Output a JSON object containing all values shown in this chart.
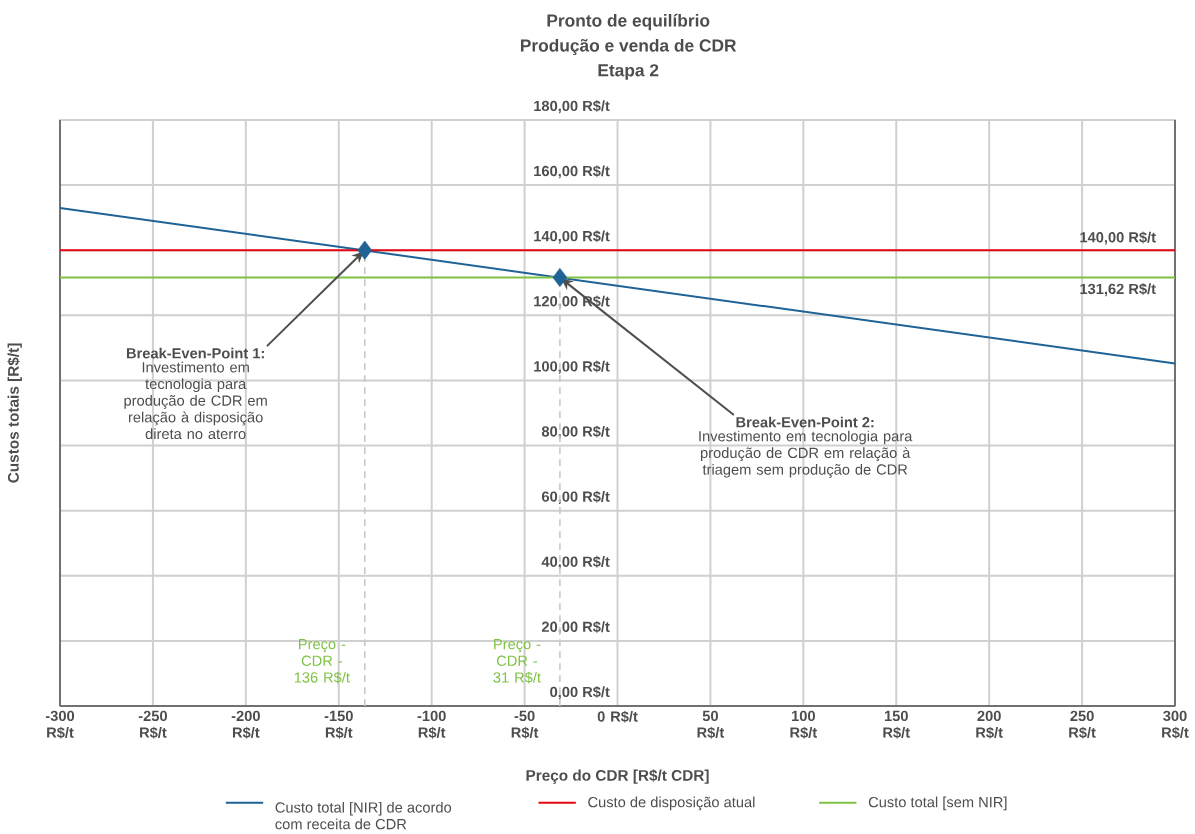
{
  "chart_data": {
    "type": "line",
    "title": "Pronto de equilíbrio",
    "subtitle": "Produção e venda de CDR",
    "xlabel": "Preço do CDR [R$/t CDR]",
    "ylabel": "Custos totais [R$/t]",
    "xlim": [
      -300,
      300
    ],
    "ylim": [
      0,
      180
    ],
    "xticks": [
      {
        "value": -300,
        "label": "-300 R$/t"
      },
      {
        "value": -250,
        "label": "-250 R$/t"
      },
      {
        "value": -200,
        "label": "-200 R$/t"
      },
      {
        "value": -150,
        "label": "-150 R$/t"
      },
      {
        "value": -100,
        "label": "-100 R$/t"
      },
      {
        "value": -50,
        "label": "-50 R$/t"
      },
      {
        "value": 0,
        "label": "0 R$/t"
      },
      {
        "value": 50,
        "label": "50 R$/t"
      },
      {
        "value": 100,
        "label": "100 R$/t"
      },
      {
        "value": 150,
        "label": "150 R$/t"
      },
      {
        "value": 200,
        "label": "200 R$/t"
      },
      {
        "value": 250,
        "label": "250 R$/t"
      },
      {
        "value": 300,
        "label": "300 R$/t"
      }
    ],
    "yticks": [
      {
        "value": 0,
        "label": "0,00 R$/t"
      },
      {
        "value": 20,
        "label": "20,00 R$/t"
      },
      {
        "value": 40,
        "label": "40,00 R$/t"
      },
      {
        "value": 60,
        "label": "60,00 R$/t"
      },
      {
        "value": 80,
        "label": "80,00 R$/t"
      },
      {
        "value": 100,
        "label": "100,00 R$/t"
      },
      {
        "value": 120,
        "label": "120,00 R$/t"
      },
      {
        "value": 140,
        "label": "140,00 R$/t"
      },
      {
        "value": 160,
        "label": "160,00 R$/t"
      },
      {
        "value": 180,
        "label": "180,00 R$/t"
      }
    ],
    "grid": true,
    "legend": "bottom",
    "series": [
      {
        "name": "Custo total [NIR] de acordo com receita de CDR",
        "color": "#1f6396",
        "x": [
          -300,
          300
        ],
        "values": [
          153,
          105.2
        ]
      },
      {
        "name": "Custo de disposição atual",
        "color": "#e30613",
        "x": [
          -300,
          300
        ],
        "values": [
          140,
          140
        ]
      },
      {
        "name": "Custo total [sem NIR]",
        "color": "#7dc242",
        "x": [
          -300,
          300
        ],
        "values": [
          131.62,
          131.62
        ]
      },
      {
        "type": "scatter",
        "marker": "diamond",
        "color": "#1f6396",
        "x": [
          -136,
          -31
        ],
        "values": [
          140,
          131.62
        ]
      }
    ],
    "ref_lines": [
      {
        "axis": "x",
        "value": -136,
        "label": "Preço - CDR - 136 R$/t",
        "color": "#c8c8c8",
        "line_style": "dashed"
      },
      {
        "axis": "x",
        "value": -31,
        "label": "Preço - CDR - 31 R$/t",
        "color": "#c8c8c8",
        "line_style": "dashed"
      }
    ],
    "annotations": [
      "Etapa 2",
      {
        "text": "140,00 R$/t",
        "x": 300,
        "y": 140
      },
      {
        "text": "131,62 R$/t",
        "x": 300,
        "y": 131.62
      },
      {
        "text": "Break-Even-Point 1:",
        "x": -136,
        "y": 140
      },
      "Investimento em tecnologia para produção de CDR em relação à disposição direta no aterro",
      {
        "text": "Break-Even-Point 2:",
        "x": -31,
        "y": 131.62
      },
      "Investimento em tecnologia para produção de CDR em relação à triagem sem produção de CDR"
    ]
  }
}
